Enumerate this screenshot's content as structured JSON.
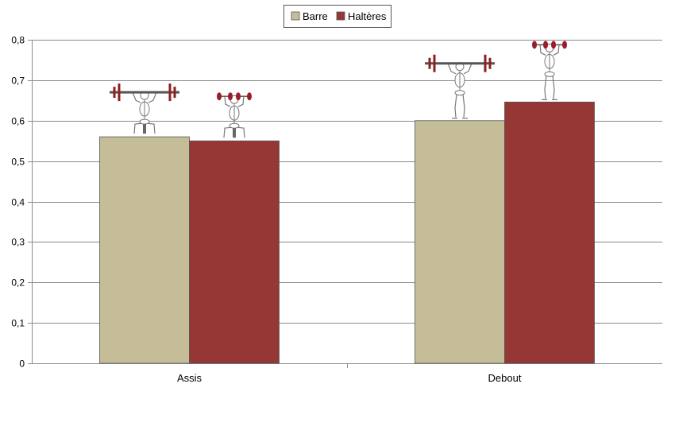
{
  "chart_data": {
    "type": "bar",
    "categories": [
      "Assis",
      "Debout"
    ],
    "series": [
      {
        "name": "Barre",
        "values": [
          0.56,
          0.6
        ],
        "color": "#c4bd97"
      },
      {
        "name": "Haltères",
        "values": [
          0.55,
          0.646
        ],
        "color": "#953735"
      }
    ],
    "ylim": [
      0,
      0.8
    ],
    "yticks": [
      "0",
      "0,1",
      "0,2",
      "0,3",
      "0,4",
      "0,5",
      "0,6",
      "0,7",
      "0,8"
    ],
    "grid": true,
    "legend_position": "top-center",
    "annotations": [
      {
        "category": "Assis",
        "series": "Barre",
        "icon": "seated-barbell-press-figure-icon"
      },
      {
        "category": "Assis",
        "series": "Haltères",
        "icon": "seated-dumbbell-press-figure-icon"
      },
      {
        "category": "Debout",
        "series": "Barre",
        "icon": "standing-barbell-press-figure-icon"
      },
      {
        "category": "Debout",
        "series": "Haltères",
        "icon": "standing-dumbbell-press-figure-icon"
      }
    ]
  }
}
